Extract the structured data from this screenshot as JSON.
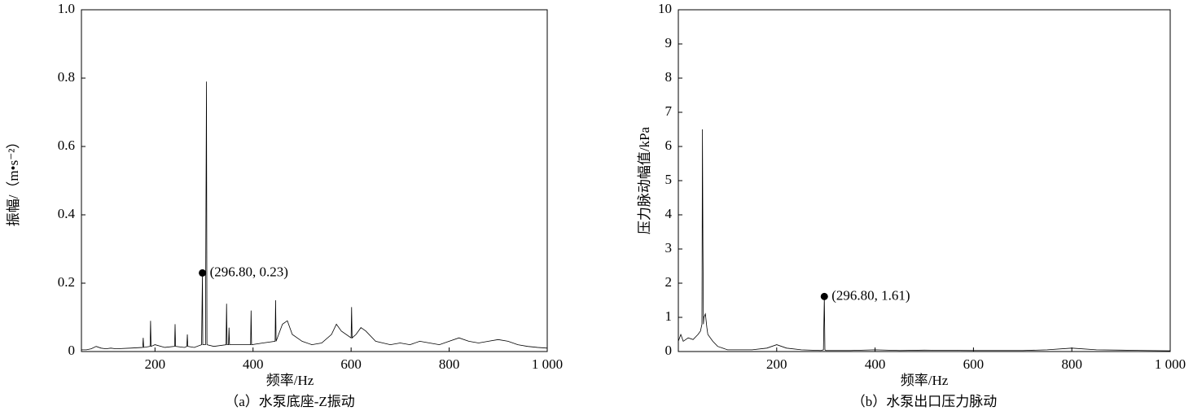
{
  "chart_data": [
    {
      "type": "line",
      "x_label": "频率/Hz",
      "y_label": "振幅/（m•s⁻²）",
      "caption": "（a）水泵底座-Z振动",
      "color": "#000000",
      "xlim": [
        50,
        1000
      ],
      "ylim": [
        0,
        1
      ],
      "xticks": [
        200,
        400,
        600,
        800,
        {
          "value": 1000,
          "label": "1 000"
        }
      ],
      "yticks": [
        0,
        0.2,
        0.4,
        0.6,
        0.8,
        {
          "value": 1,
          "label": "1.0"
        }
      ],
      "x": [
        50,
        60,
        70,
        80,
        90,
        100,
        110,
        120,
        150,
        175,
        176,
        177,
        190,
        191,
        192,
        200,
        220,
        240,
        241,
        242,
        260,
        265,
        266,
        267,
        280,
        295,
        296.8,
        297.5,
        303,
        304,
        305,
        306,
        320,
        345,
        346,
        347,
        350,
        351,
        352,
        380,
        395,
        396,
        397,
        420,
        445,
        446,
        447,
        460,
        470,
        480,
        500,
        520,
        540,
        560,
        570,
        580,
        600,
        601,
        602,
        610,
        620,
        630,
        650,
        680,
        700,
        720,
        740,
        760,
        780,
        800,
        820,
        840,
        860,
        880,
        900,
        920,
        940,
        960,
        980,
        1000
      ],
      "values": [
        0.005,
        0.005,
        0.008,
        0.015,
        0.01,
        0.008,
        0.01,
        0.008,
        0.01,
        0.012,
        0.04,
        0.012,
        0.015,
        0.09,
        0.015,
        0.02,
        0.012,
        0.015,
        0.08,
        0.015,
        0.012,
        0.015,
        0.05,
        0.015,
        0.012,
        0.02,
        0.23,
        0.02,
        0.02,
        0.43,
        0.79,
        0.02,
        0.015,
        0.02,
        0.14,
        0.02,
        0.02,
        0.07,
        0.02,
        0.02,
        0.02,
        0.12,
        0.02,
        0.025,
        0.03,
        0.15,
        0.03,
        0.08,
        0.09,
        0.05,
        0.03,
        0.02,
        0.025,
        0.05,
        0.08,
        0.06,
        0.04,
        0.13,
        0.04,
        0.05,
        0.07,
        0.06,
        0.03,
        0.02,
        0.025,
        0.02,
        0.03,
        0.025,
        0.02,
        0.03,
        0.04,
        0.03,
        0.025,
        0.03,
        0.035,
        0.03,
        0.02,
        0.015,
        0.012,
        0.01
      ],
      "annotation": {
        "x": 296.8,
        "y": 0.23,
        "label": "(296.80, 0.23)"
      }
    },
    {
      "type": "line",
      "x_label": "频率/Hz",
      "y_label": "压力脉动幅值/kPa",
      "caption": "（b）水泵出口压力脉动",
      "color": "#000000",
      "xlim": [
        0,
        1000
      ],
      "ylim": [
        0,
        10
      ],
      "xticks": [
        200,
        400,
        600,
        800,
        {
          "value": 1000,
          "label": "1 000"
        }
      ],
      "yticks": [
        0,
        1,
        2,
        3,
        4,
        5,
        6,
        7,
        8,
        9,
        10
      ],
      "x": [
        0,
        5,
        10,
        20,
        30,
        40,
        45,
        48,
        49,
        50,
        51,
        52,
        55,
        58,
        60,
        70,
        80,
        100,
        150,
        180,
        200,
        220,
        250,
        290,
        295,
        296.8,
        298,
        300,
        350,
        400,
        450,
        500,
        600,
        650,
        700,
        750,
        800,
        850,
        900,
        950,
        1000
      ],
      "values": [
        0.3,
        0.5,
        0.3,
        0.4,
        0.35,
        0.5,
        0.6,
        0.8,
        6.5,
        3.1,
        0.8,
        1.0,
        1.1,
        0.7,
        0.5,
        0.3,
        0.15,
        0.05,
        0.05,
        0.1,
        0.2,
        0.1,
        0.05,
        0.03,
        0.05,
        1.61,
        0.05,
        0.03,
        0.03,
        0.05,
        0.03,
        0.04,
        0.03,
        0.03,
        0.03,
        0.05,
        0.1,
        0.05,
        0.04,
        0.03,
        0.02
      ],
      "annotation": {
        "x": 296.8,
        "y": 1.61,
        "label": "(296.80, 1.61)"
      }
    }
  ]
}
